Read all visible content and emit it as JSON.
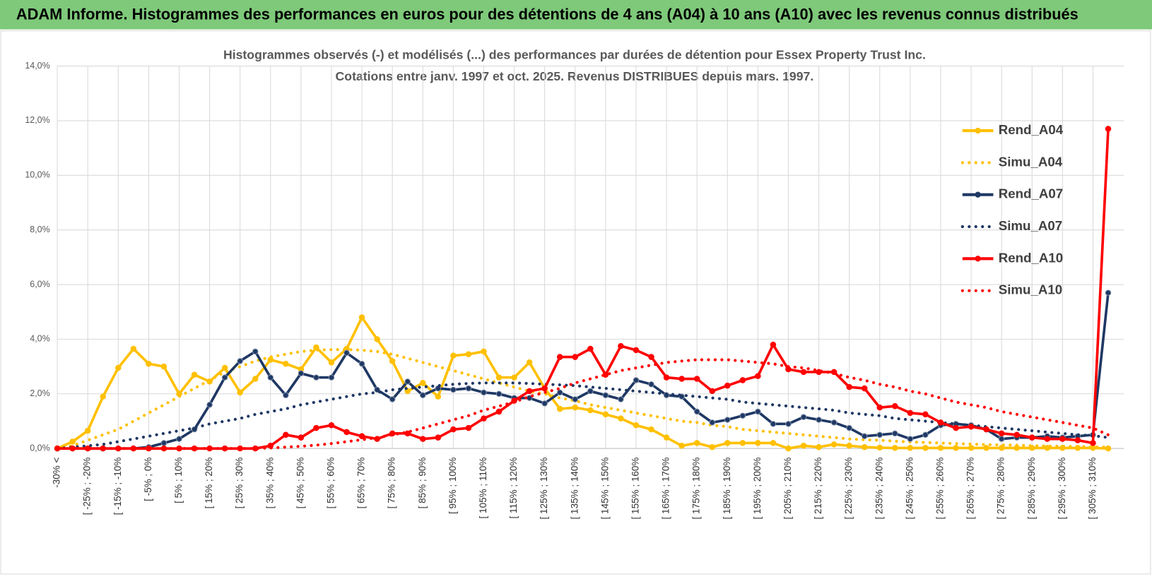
{
  "header_title": "ADAM Informe. Histogrammes des performances en euros pour des détentions de 4 ans (A04) à 10 ans (A10) avec les revenus connus distribués",
  "chart_data": {
    "type": "line",
    "title": "Histogrammes observés (-) et modélisés (...) des performances par durées de détention pour Essex Property Trust Inc.",
    "subtitle": "Cotations entre janv. 1997 et oct. 2025.  Revenus DISTRIBUES depuis mars. 1997.",
    "categories": [
      "-30% <",
      null,
      "[ -25% ; -20%",
      null,
      "[ -15% ; -10%",
      null,
      "[ -5% ; 0%",
      null,
      "[ 5% ; 10%",
      null,
      "[ 15% ; 20%",
      null,
      "[ 25% ; 30%",
      null,
      "[ 35% ; 40%",
      null,
      "[ 45% ; 50%",
      null,
      "[ 55% ; 60%",
      null,
      "[ 65% ; 70%",
      null,
      "[ 75% ; 80%",
      null,
      "[ 85% ; 90%",
      null,
      "[ 95% ; 100%",
      null,
      "[ 105% ; 110%",
      null,
      "[ 115% ; 120%",
      null,
      "[ 125% ; 130%",
      null,
      "[ 135% ; 140%",
      null,
      "[ 145% ; 150%",
      null,
      "[ 155% ; 160%",
      null,
      "[ 165% ; 170%",
      null,
      "[ 175% ; 180%",
      null,
      "[ 185% ; 190%",
      null,
      "[ 195% ; 200%",
      null,
      "[ 205% ; 210%",
      null,
      "[ 215% ; 220%",
      null,
      "[ 225% ; 230%",
      null,
      "[ 235% ; 240%",
      null,
      "[ 245% ; 250%",
      null,
      "[ 255% ; 260%",
      null,
      "[ 265% ; 270%",
      null,
      "[ 275% ; 280%",
      null,
      "[ 285% ; 290%",
      null,
      "[ 295% ; 300%",
      null,
      "[ 305% ; 310%",
      null
    ],
    "series": [
      {
        "name": "Rend_A04",
        "color": "#ffc000",
        "line_style": "solid",
        "markers": true,
        "values": [
          0,
          0.25,
          0.65,
          1.9,
          2.95,
          3.65,
          3.1,
          3.0,
          2.0,
          2.7,
          2.45,
          2.95,
          2.05,
          2.55,
          3.25,
          3.1,
          2.9,
          3.7,
          3.15,
          3.65,
          4.8,
          4.0,
          3.2,
          2.1,
          2.4,
          1.9,
          3.4,
          3.45,
          3.55,
          2.6,
          2.6,
          3.15,
          2.2,
          1.45,
          1.5,
          1.4,
          1.25,
          1.1,
          0.85,
          0.7,
          0.4,
          0.1,
          0.2,
          0.05,
          0.2,
          0.2,
          0.2,
          0.2,
          0.0,
          0.1,
          0.05,
          0.15,
          0.1,
          0.05,
          0.03,
          0.02,
          0.02,
          0.02,
          0.02,
          0.02,
          0.02,
          0.02,
          0.02,
          0.02,
          0.02,
          0.02,
          0.02,
          0.02,
          0.02,
          0.0
        ]
      },
      {
        "name": "Simu_A04",
        "color": "#ffc000",
        "line_style": "dotted",
        "markers": false,
        "values": [
          0.0,
          0.1,
          0.3,
          0.5,
          0.7,
          1.0,
          1.3,
          1.6,
          1.9,
          2.2,
          2.5,
          2.8,
          3.0,
          3.2,
          3.35,
          3.45,
          3.55,
          3.6,
          3.62,
          3.62,
          3.6,
          3.55,
          3.45,
          3.3,
          3.15,
          3.0,
          2.85,
          2.7,
          2.55,
          2.4,
          2.25,
          2.1,
          2.0,
          1.85,
          1.75,
          1.6,
          1.5,
          1.4,
          1.3,
          1.2,
          1.1,
          1.0,
          0.95,
          0.85,
          0.8,
          0.7,
          0.65,
          0.6,
          0.55,
          0.5,
          0.45,
          0.4,
          0.35,
          0.32,
          0.3,
          0.27,
          0.24,
          0.22,
          0.2,
          0.18,
          0.16,
          0.14,
          0.13,
          0.12,
          0.1,
          0.09,
          0.08,
          0.07,
          0.06,
          0.05
        ]
      },
      {
        "name": "Rend_A07",
        "color": "#1f3864",
        "line_style": "solid",
        "markers": true,
        "values": [
          0,
          0,
          0,
          0,
          0,
          0,
          0.05,
          0.2,
          0.35,
          0.7,
          1.6,
          2.6,
          3.2,
          3.55,
          2.6,
          1.95,
          2.75,
          2.6,
          2.6,
          3.5,
          3.1,
          2.15,
          1.8,
          2.45,
          1.95,
          2.2,
          2.15,
          2.2,
          2.05,
          2.0,
          1.85,
          1.85,
          1.65,
          2.05,
          1.8,
          2.1,
          1.95,
          1.8,
          2.5,
          2.35,
          1.95,
          1.9,
          1.35,
          0.95,
          1.05,
          1.2,
          1.35,
          0.9,
          0.9,
          1.15,
          1.05,
          0.95,
          0.75,
          0.45,
          0.5,
          0.55,
          0.35,
          0.5,
          0.85,
          0.9,
          0.85,
          0.7,
          0.35,
          0.4,
          0.4,
          0.45,
          0.4,
          0.45,
          0.5,
          5.7
        ]
      },
      {
        "name": "Simu_A07",
        "color": "#1f3864",
        "line_style": "dotted",
        "markers": false,
        "values": [
          0.0,
          0.05,
          0.1,
          0.15,
          0.25,
          0.35,
          0.45,
          0.55,
          0.65,
          0.75,
          0.9,
          1.0,
          1.1,
          1.25,
          1.35,
          1.45,
          1.6,
          1.7,
          1.8,
          1.9,
          2.0,
          2.05,
          2.15,
          2.2,
          2.25,
          2.3,
          2.35,
          2.38,
          2.4,
          2.4,
          2.4,
          2.38,
          2.35,
          2.33,
          2.3,
          2.25,
          2.2,
          2.15,
          2.1,
          2.05,
          2.0,
          1.95,
          1.9,
          1.85,
          1.8,
          1.7,
          1.65,
          1.6,
          1.55,
          1.5,
          1.45,
          1.4,
          1.3,
          1.25,
          1.2,
          1.1,
          1.05,
          1.0,
          0.95,
          0.9,
          0.85,
          0.8,
          0.75,
          0.7,
          0.65,
          0.6,
          0.55,
          0.5,
          0.47,
          0.4
        ]
      },
      {
        "name": "Rend_A10",
        "color": "#ff0000",
        "line_style": "solid",
        "markers": true,
        "values": [
          0,
          0,
          0,
          0,
          0,
          0,
          0,
          0,
          0,
          0,
          0,
          0,
          0,
          0,
          0.1,
          0.5,
          0.4,
          0.75,
          0.85,
          0.6,
          0.45,
          0.35,
          0.55,
          0.55,
          0.35,
          0.4,
          0.7,
          0.75,
          1.1,
          1.35,
          1.75,
          2.1,
          2.2,
          3.35,
          3.35,
          3.65,
          2.7,
          3.75,
          3.6,
          3.35,
          2.6,
          2.55,
          2.55,
          2.1,
          2.3,
          2.5,
          2.65,
          3.8,
          2.9,
          2.8,
          2.8,
          2.8,
          2.25,
          2.2,
          1.5,
          1.55,
          1.3,
          1.25,
          0.95,
          0.75,
          0.8,
          0.7,
          0.55,
          0.5,
          0.4,
          0.35,
          0.35,
          0.3,
          0.2,
          11.7
        ]
      },
      {
        "name": "Simu_A10",
        "color": "#ff0000",
        "line_style": "dotted",
        "markers": false,
        "values": [
          0,
          0,
          0,
          0,
          0,
          0,
          0,
          0,
          0,
          0,
          0,
          0,
          0,
          0,
          0.02,
          0.05,
          0.08,
          0.12,
          0.18,
          0.25,
          0.32,
          0.4,
          0.5,
          0.6,
          0.75,
          0.9,
          1.05,
          1.2,
          1.4,
          1.55,
          1.7,
          1.9,
          2.05,
          2.2,
          2.4,
          2.55,
          2.7,
          2.85,
          2.95,
          3.05,
          3.15,
          3.2,
          3.25,
          3.25,
          3.25,
          3.2,
          3.15,
          3.1,
          3.0,
          2.95,
          2.85,
          2.75,
          2.6,
          2.5,
          2.35,
          2.25,
          2.1,
          2.0,
          1.85,
          1.7,
          1.6,
          1.5,
          1.35,
          1.25,
          1.15,
          1.05,
          0.95,
          0.85,
          0.75,
          0.5
        ]
      }
    ],
    "ylim": [
      0,
      14
    ],
    "yticks": [
      {
        "value": 0,
        "label": "0,0%"
      },
      {
        "value": 2,
        "label": "2,0%"
      },
      {
        "value": 4,
        "label": "4,0%"
      },
      {
        "value": 6,
        "label": "6,0%"
      },
      {
        "value": 8,
        "label": "8,0%"
      },
      {
        "value": 10,
        "label": "10,0%"
      },
      {
        "value": 12,
        "label": "12,0%"
      },
      {
        "value": 14,
        "label": "14,0%"
      }
    ],
    "grid": true,
    "legend": "right"
  }
}
